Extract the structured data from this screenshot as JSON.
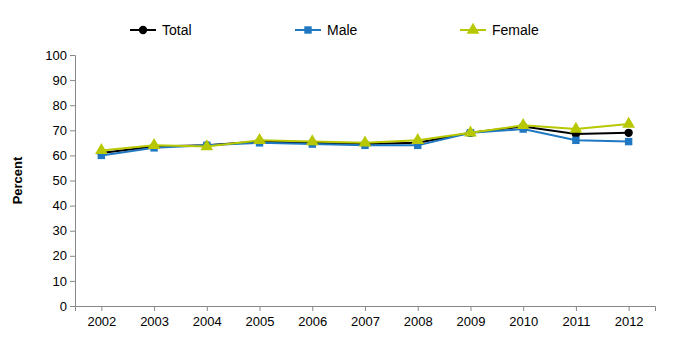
{
  "chart_data": {
    "type": "line",
    "y_label": "Percent",
    "categories": [
      "2002",
      "2003",
      "2004",
      "2005",
      "2006",
      "2007",
      "2008",
      "2009",
      "2010",
      "2011",
      "2012"
    ],
    "series": [
      {
        "name": "Total",
        "color": "#000000",
        "marker": "circle",
        "values": [
          61,
          63.5,
          64,
          65.5,
          65,
          64.5,
          65,
          69,
          71.5,
          68.5,
          69
        ]
      },
      {
        "name": "Male",
        "color": "#1f78c1",
        "marker": "square",
        "values": [
          60,
          63,
          64,
          65,
          64.5,
          64,
          64,
          69,
          70.5,
          66,
          65.5
        ]
      },
      {
        "name": "Female",
        "color": "#b8c800",
        "marker": "triangle",
        "values": [
          62,
          64,
          63.5,
          66,
          65.5,
          65,
          66,
          69,
          72,
          70.5,
          72.5
        ]
      }
    ],
    "ylim": [
      0,
      100
    ],
    "yticks": [
      0,
      10,
      20,
      30,
      40,
      50,
      60,
      70,
      80,
      90,
      100
    ],
    "grid": false,
    "legend": "top"
  }
}
